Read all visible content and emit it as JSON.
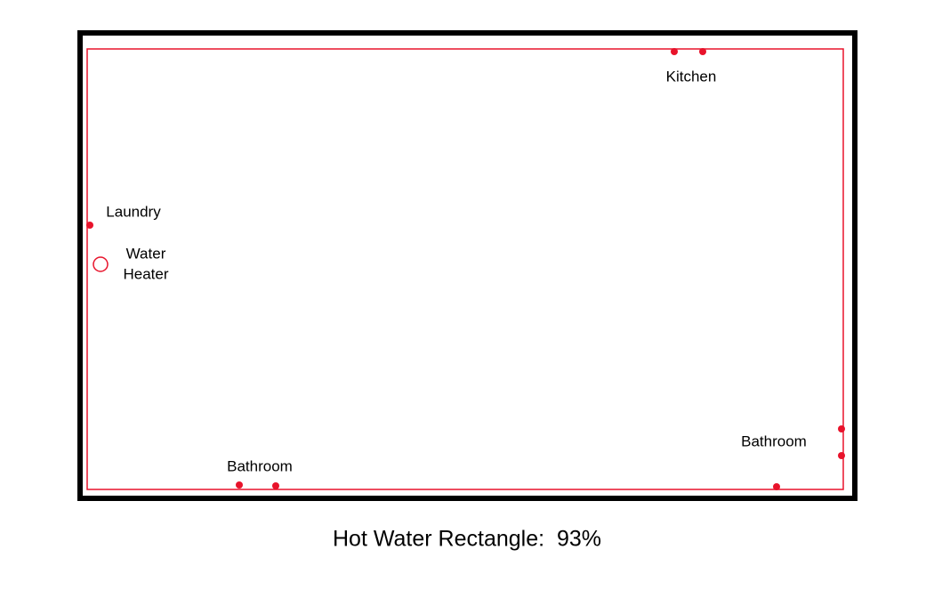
{
  "labels": {
    "kitchen": "Kitchen",
    "laundry": "Laundry",
    "water_heater": [
      "Water",
      "Heater"
    ],
    "bathroom_left": "Bathroom",
    "bathroom_right": "Bathroom"
  },
  "caption": "Hot Water Rectangle:  93%"
}
